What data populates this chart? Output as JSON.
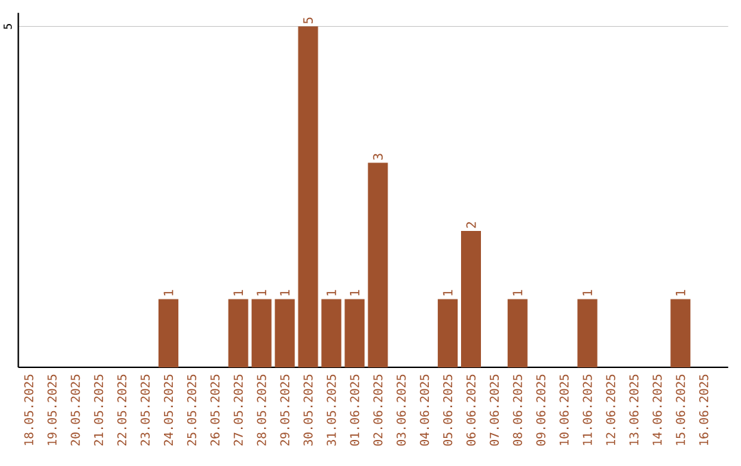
{
  "chart_data": {
    "type": "bar",
    "categories": [
      "18.05.2025",
      "19.05.2025",
      "20.05.2025",
      "21.05.2025",
      "22.05.2025",
      "23.05.2025",
      "24.05.2025",
      "25.05.2025",
      "26.05.2025",
      "27.05.2025",
      "28.05.2025",
      "29.05.2025",
      "30.05.2025",
      "31.05.2025",
      "01.06.2025",
      "02.06.2025",
      "03.06.2025",
      "04.06.2025",
      "05.06.2025",
      "06.06.2025",
      "07.06.2025",
      "08.06.2025",
      "09.06.2025",
      "10.06.2025",
      "11.06.2025",
      "12.06.2025",
      "13.06.2025",
      "14.06.2025",
      "15.06.2025",
      "16.06.2025"
    ],
    "values": [
      0,
      0,
      0,
      0,
      0,
      0,
      1,
      0,
      0,
      1,
      1,
      1,
      5,
      1,
      1,
      3,
      0,
      0,
      1,
      2,
      0,
      1,
      0,
      0,
      1,
      0,
      0,
      0,
      1,
      0
    ],
    "value_labels": [
      null,
      null,
      null,
      null,
      null,
      null,
      "1",
      null,
      null,
      "1",
      "1",
      "1",
      "5",
      "1",
      "1",
      "3",
      null,
      null,
      "1",
      "2",
      null,
      "1",
      null,
      null,
      "1",
      null,
      null,
      null,
      "1",
      null
    ],
    "color": "#a0522d",
    "ylim": [
      0,
      5.2
    ],
    "yticks": [
      5
    ],
    "grid": "y"
  }
}
